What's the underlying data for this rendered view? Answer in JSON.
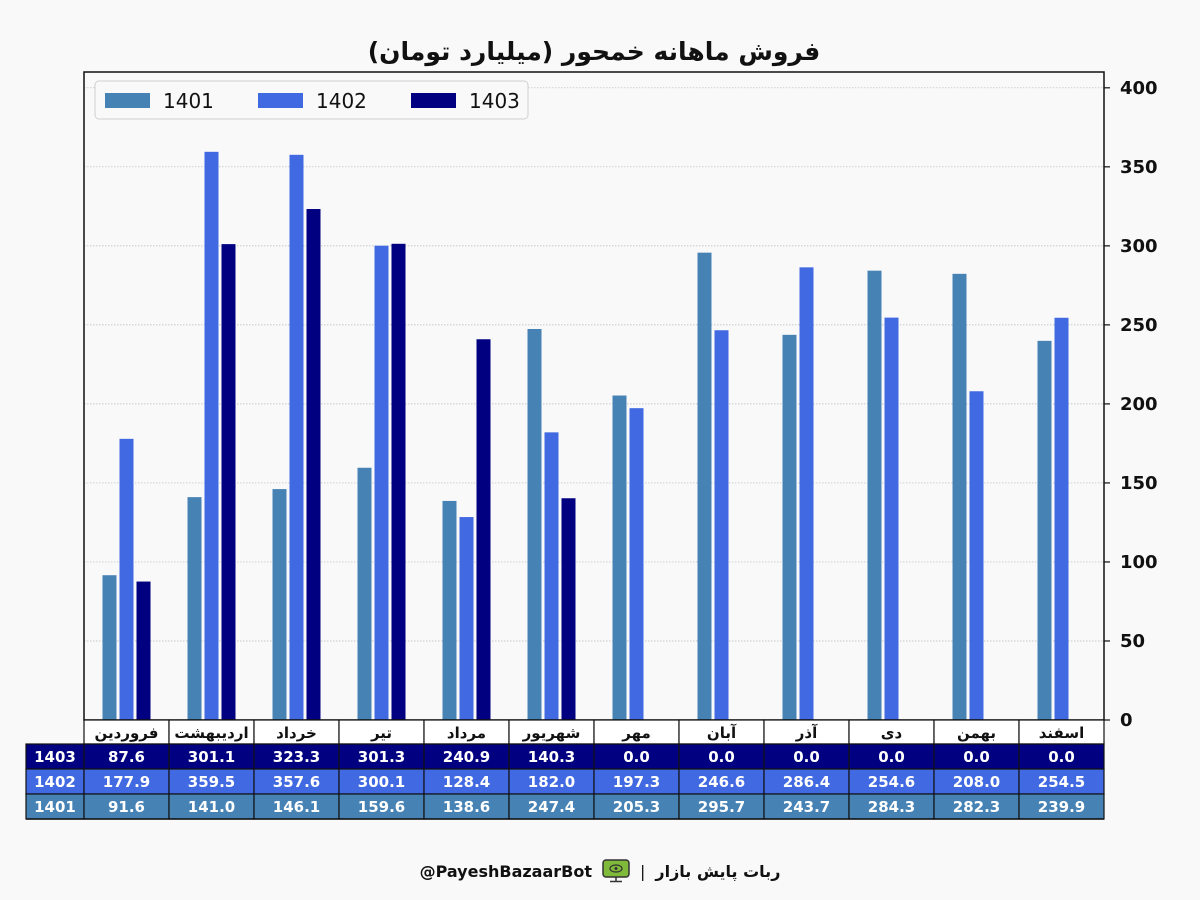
{
  "chart_data": {
    "type": "bar",
    "title": "فروش ماهانه خمحور (میلیارد تومان)",
    "categories": [
      "فروردین",
      "اردیبهشت",
      "خرداد",
      "تیر",
      "مرداد",
      "شهریور",
      "مهر",
      "آبان",
      "آذر",
      "دی",
      "بهمن",
      "اسفند"
    ],
    "series": [
      {
        "name": "1401",
        "color": "#4682b4",
        "values": [
          91.6,
          141.0,
          146.1,
          159.6,
          138.6,
          247.4,
          205.3,
          295.7,
          243.7,
          284.3,
          282.3,
          239.9
        ]
      },
      {
        "name": "1402",
        "color": "#4169e1",
        "values": [
          177.9,
          359.5,
          357.6,
          300.1,
          128.4,
          182.0,
          197.3,
          246.6,
          286.4,
          254.6,
          208.0,
          254.5
        ]
      },
      {
        "name": "1403",
        "color": "#000080",
        "values": [
          87.6,
          301.1,
          323.3,
          301.3,
          240.9,
          140.3,
          0.0,
          0.0,
          0.0,
          0.0,
          0.0,
          0.0
        ]
      }
    ],
    "ylim": [
      0,
      410
    ],
    "yticks": [
      0,
      50,
      100,
      150,
      200,
      250,
      300,
      350,
      400
    ],
    "y_axis_side": "right",
    "grid": true,
    "legend_position": "top-left",
    "table": {
      "row_order": [
        "1403",
        "1402",
        "1401"
      ],
      "decimals": 1
    }
  },
  "footer": {
    "handle": "@PayeshBazaarBot",
    "separator": "|",
    "name": "ربات پایش بازار",
    "icon": "monitor-icon"
  }
}
